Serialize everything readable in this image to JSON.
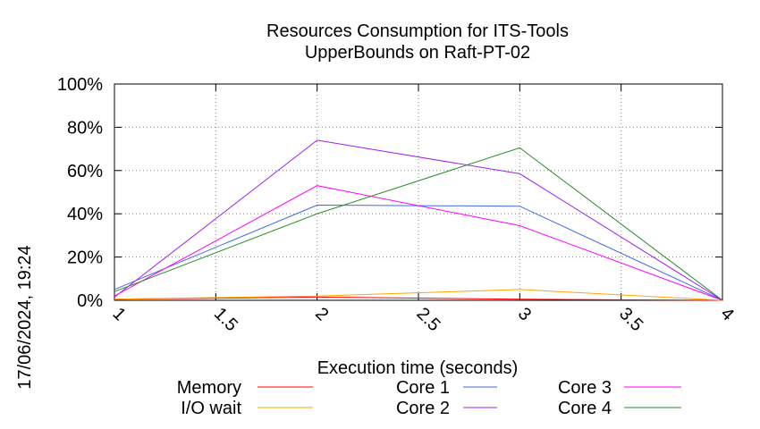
{
  "chart_data": {
    "type": "line",
    "title_lines": [
      "Resources Consumption for ITS-Tools",
      "UpperBounds on Raft-PT-02"
    ],
    "xlabel": "Execution time (seconds)",
    "ylabel": "",
    "side_label": "17/06/2024, 19:24",
    "xlim": [
      1,
      4
    ],
    "ylim": [
      0,
      100
    ],
    "x_ticks": [
      1,
      1.5,
      2,
      2.5,
      3,
      3.5,
      4
    ],
    "x_tick_labels": [
      "1",
      "1.5",
      "2",
      "2.5",
      "3",
      "3.5",
      "4"
    ],
    "y_ticks": [
      0,
      20,
      40,
      60,
      80,
      100
    ],
    "y_tick_labels": [
      "0%",
      "20%",
      "40%",
      "60%",
      "80%",
      "100%"
    ],
    "grid": true,
    "legend_placement": "bottom",
    "series": [
      {
        "name": "Memory",
        "color": "#ff0000",
        "x": [
          1,
          2,
          3,
          4
        ],
        "y": [
          0.5,
          1.5,
          0.5,
          0
        ]
      },
      {
        "name": "I/O wait",
        "color": "#ffa500",
        "x": [
          1,
          2,
          3,
          4
        ],
        "y": [
          0.5,
          2,
          5,
          0
        ]
      },
      {
        "name": "Core 1",
        "color": "#4169e1",
        "x": [
          1,
          2,
          3,
          4
        ],
        "y": [
          5,
          44,
          43.5,
          0
        ]
      },
      {
        "name": "Core 2",
        "color": "#a020f0",
        "x": [
          1,
          2,
          3,
          4
        ],
        "y": [
          1.5,
          74,
          58.5,
          0
        ]
      },
      {
        "name": "Core 3",
        "color": "#ff00ff",
        "x": [
          1,
          2,
          3,
          4
        ],
        "y": [
          2,
          53,
          34.5,
          0
        ]
      },
      {
        "name": "Core 4",
        "color": "#228b22",
        "x": [
          1,
          2,
          3,
          4
        ],
        "y": [
          4,
          40,
          70.5,
          0
        ]
      }
    ]
  }
}
